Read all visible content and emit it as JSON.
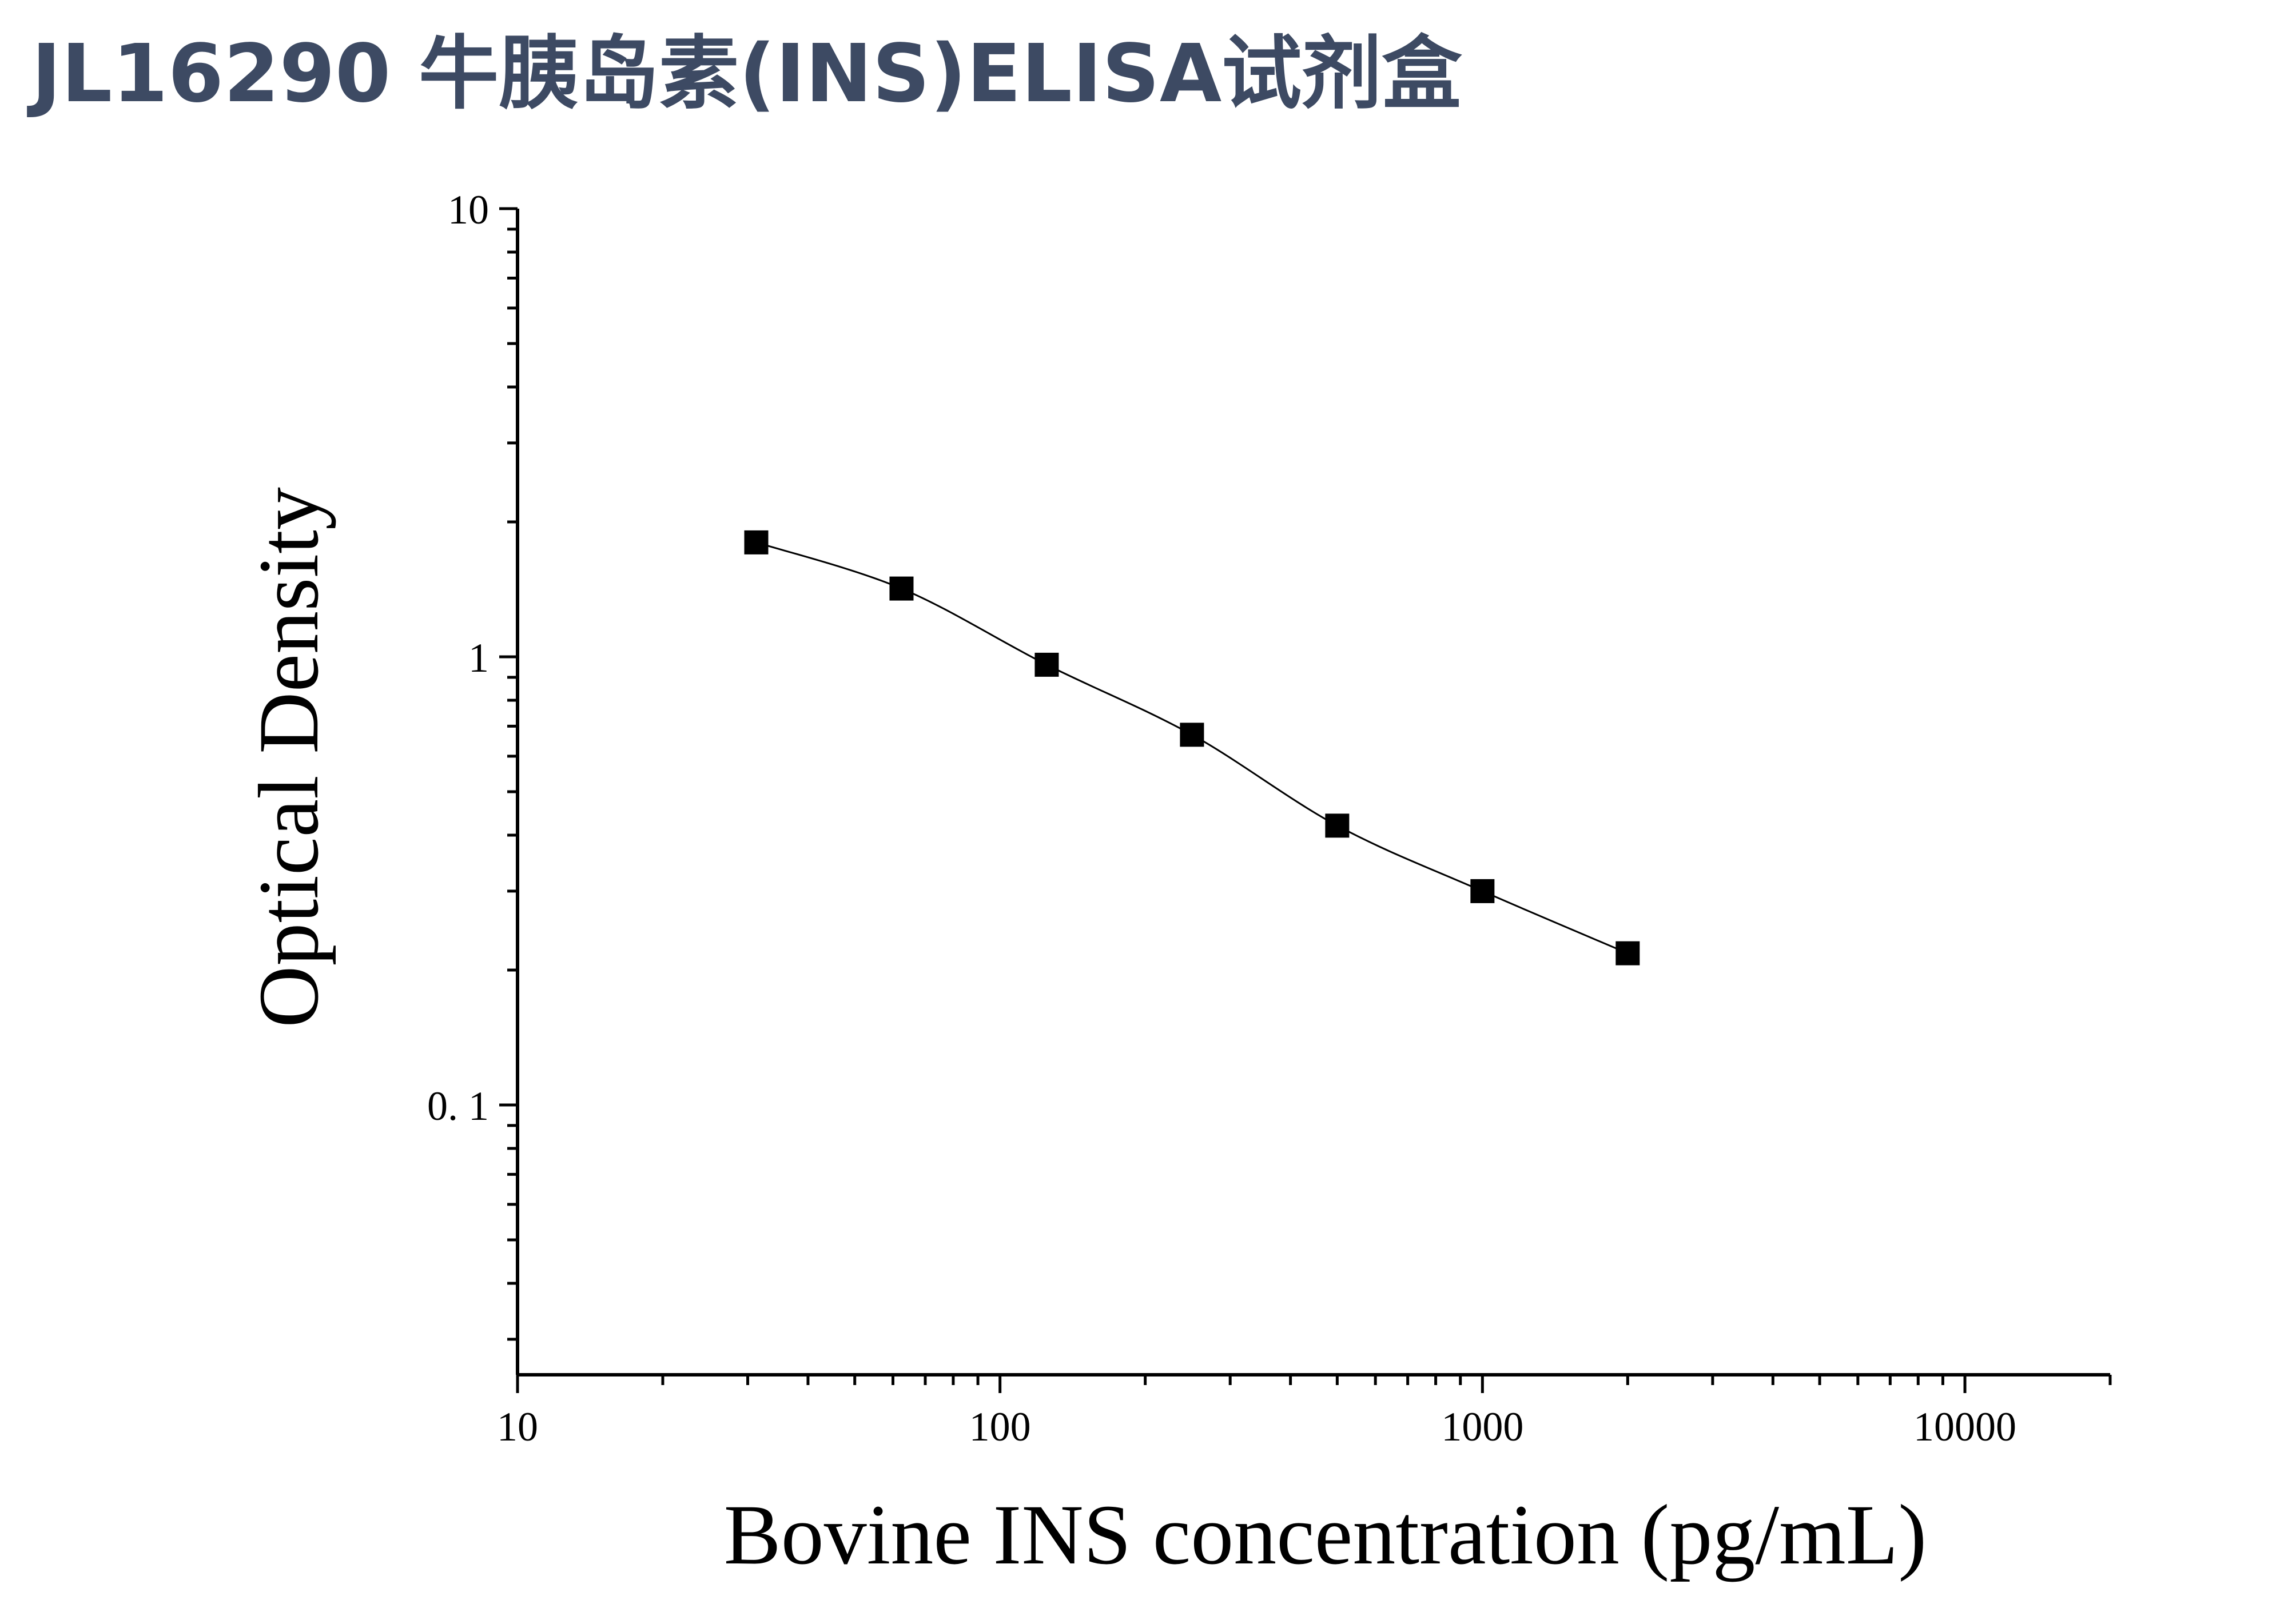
{
  "title": "JL16290 牛胰岛素(INS)ELISA试剂盒",
  "colors": {
    "title": "#3d4a63",
    "axis": "#000000",
    "marker": "#000000",
    "curve": "#000000"
  },
  "chart_data": {
    "type": "scatter",
    "xscale": "log",
    "yscale": "log",
    "xlim": [
      10,
      20000
    ],
    "ylim": [
      0.025,
      10
    ],
    "xlabel": "Bovine INS concentration (pg/mL)",
    "ylabel": "Optical Density",
    "xticks": [
      {
        "value": 10,
        "label": "10"
      },
      {
        "value": 100,
        "label": "100"
      },
      {
        "value": 1000,
        "label": "1000"
      },
      {
        "value": 10000,
        "label": "10000"
      }
    ],
    "yticks": [
      {
        "value": 0.1,
        "label": "0. 1"
      },
      {
        "value": 1,
        "label": "1"
      },
      {
        "value": 10,
        "label": "10"
      }
    ],
    "grid": false,
    "legend": "none",
    "series": [
      {
        "marker": "square",
        "x": [
          31.25,
          62.5,
          125,
          250,
          500,
          1000,
          2000
        ],
        "y": [
          1.8,
          1.42,
          0.96,
          0.67,
          0.42,
          0.3,
          0.218
        ]
      }
    ],
    "fit_curve": true
  }
}
